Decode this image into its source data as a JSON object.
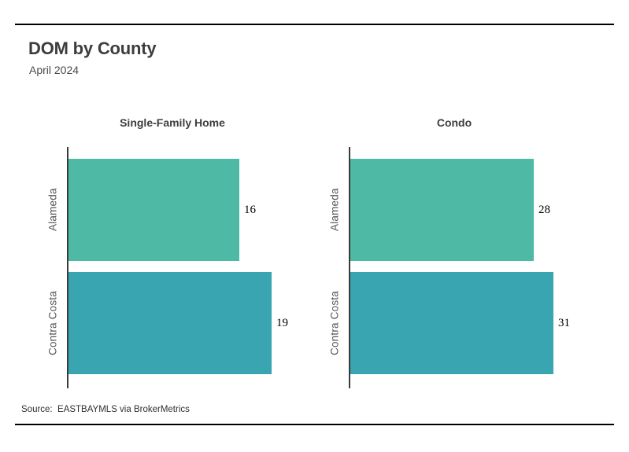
{
  "header": {
    "title": "DOM by County",
    "subtitle": "April 2024"
  },
  "footer": {
    "source": "Source:  EASTBAYMLS via BrokerMetrics"
  },
  "colors": {
    "alameda_bar": "#4EBAA5",
    "contra_costa_bar": "#39A5B0",
    "axis_line": "#3a3a3a",
    "rule_line": "#000000",
    "title_text": "#3d3d3d",
    "category_text": "#555555",
    "value_text": "#000000"
  },
  "chart_data": [
    {
      "type": "bar",
      "orientation": "horizontal",
      "title": "Single-Family Home",
      "categories": [
        "Alameda",
        "Contra Costa"
      ],
      "values": [
        16,
        19
      ],
      "bar_colors": [
        "#4EBAA5",
        "#39A5B0"
      ],
      "xlim": [
        0,
        19
      ],
      "grid": false,
      "legend": false,
      "xlabel": "",
      "ylabel": ""
    },
    {
      "type": "bar",
      "orientation": "horizontal",
      "title": "Condo",
      "categories": [
        "Alameda",
        "Contra Costa"
      ],
      "values": [
        28,
        31
      ],
      "bar_colors": [
        "#4EBAA5",
        "#39A5B0"
      ],
      "xlim": [
        0,
        31
      ],
      "grid": false,
      "legend": false,
      "xlabel": "",
      "ylabel": ""
    }
  ]
}
